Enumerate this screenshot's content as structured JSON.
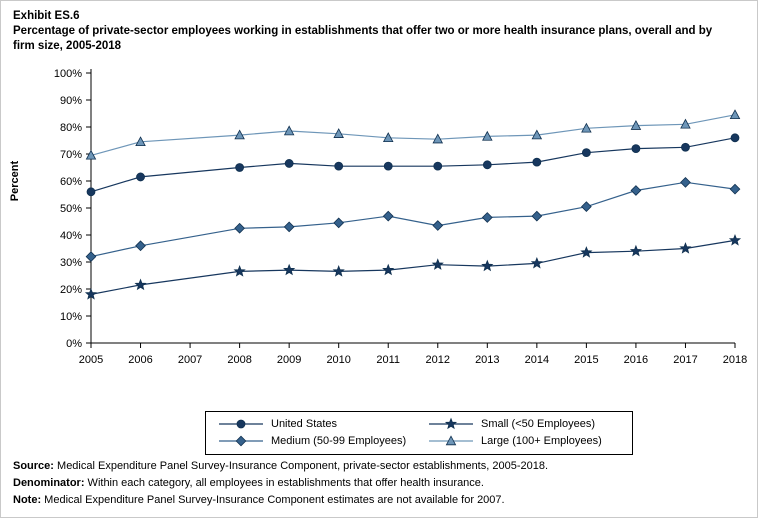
{
  "header": {
    "exhibit": "Exhibit ES.6",
    "title": "Percentage of private-sector employees working in establishments that offer two or more health insurance plans, overall and by firm size, 2005-2018"
  },
  "chart_data": {
    "type": "line",
    "x": [
      2005,
      2006,
      2007,
      2008,
      2009,
      2010,
      2011,
      2012,
      2013,
      2014,
      2015,
      2016,
      2017,
      2018
    ],
    "ylabel": "Percent",
    "ylim": [
      0,
      100
    ],
    "ytick_step": 10,
    "ytick_labels": [
      "0%",
      "10%",
      "20%",
      "30%",
      "40%",
      "50%",
      "60%",
      "70%",
      "80%",
      "90%",
      "100%"
    ],
    "grid": false,
    "note": "No data for 2007; lines connect 2006 to 2008",
    "series": [
      {
        "name": "United States",
        "marker": "circle",
        "color": "#17375e",
        "values": [
          56,
          61.5,
          null,
          65,
          66.5,
          65.5,
          65.5,
          65.5,
          66,
          67,
          70.5,
          72,
          72.5,
          76
        ]
      },
      {
        "name": "Medium (50-99 Employees)",
        "marker": "diamond",
        "color": "#35618c",
        "values": [
          32,
          36,
          null,
          42.5,
          43,
          44.5,
          47,
          43.5,
          46.5,
          47,
          50.5,
          56.5,
          59.5,
          57
        ]
      },
      {
        "name": "Small (<50 Employees)",
        "marker": "star",
        "color": "#17375e",
        "values": [
          18,
          21.5,
          null,
          26.5,
          27,
          26.5,
          27,
          29,
          28.5,
          29.5,
          33.5,
          34,
          35,
          38
        ]
      },
      {
        "name": "Large (100+ Employees)",
        "marker": "triangle",
        "color": "#6e96b8",
        "values": [
          69.5,
          74.5,
          null,
          77,
          78.5,
          77.5,
          76,
          75.5,
          76.5,
          77,
          79.5,
          80.5,
          81,
          84.5
        ]
      }
    ],
    "legend_order": [
      0,
      2,
      1,
      3
    ],
    "legend_position": "bottom"
  },
  "footnotes": {
    "source_label": "Source:",
    "source_text": " Medical Expenditure Panel Survey-Insurance Component, private-sector establishments, 2005-2018.",
    "denominator_label": "Denominator:",
    "denominator_text": " Within each category, all employees in establishments that offer health insurance.",
    "note_label": "Note:",
    "note_text": " Medical Expenditure Panel Survey-Insurance Component estimates are not available for 2007."
  }
}
